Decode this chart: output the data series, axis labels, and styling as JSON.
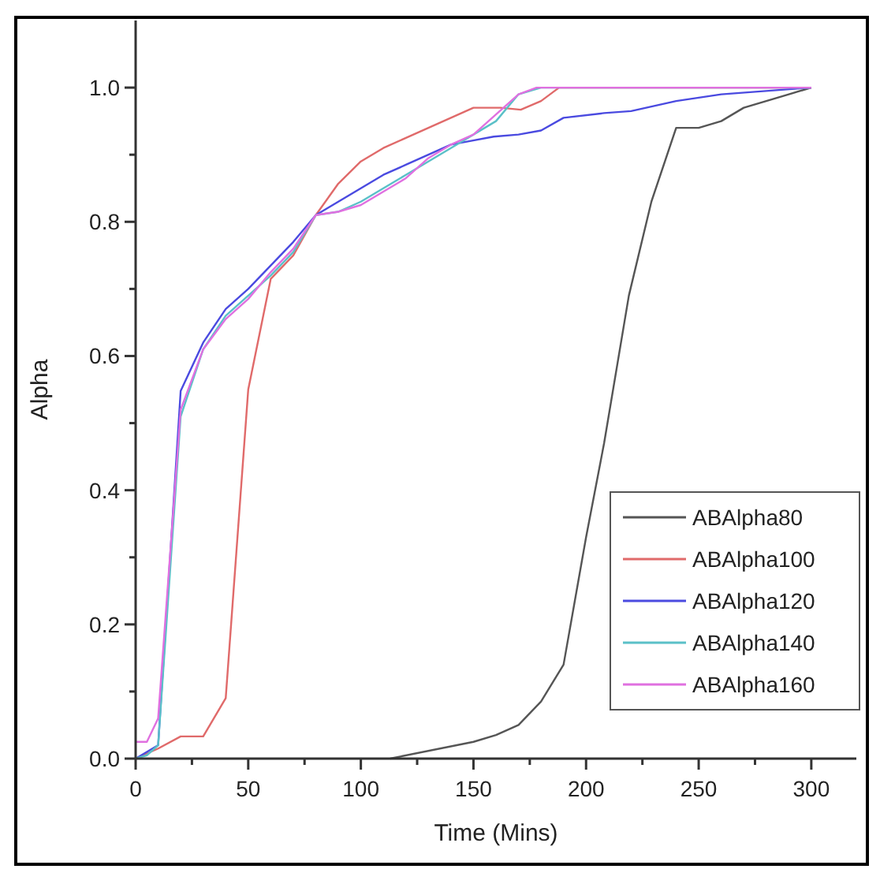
{
  "chart_data": {
    "type": "line",
    "xlabel": "Time (Mins)",
    "ylabel": "Alpha",
    "xlim": [
      0,
      320
    ],
    "ylim": [
      0,
      1.1
    ],
    "xticks": [
      0,
      {
        "value": 25,
        "label": null
      },
      50,
      {
        "value": 75,
        "label": null
      },
      100,
      {
        "value": 125,
        "label": null
      },
      150,
      {
        "value": 175,
        "label": null
      },
      200,
      {
        "value": 225,
        "label": null
      },
      250,
      {
        "value": 275,
        "label": null
      },
      300
    ],
    "yticks": [
      {
        "value": 0,
        "label": "0.0"
      },
      {
        "value": 0.1,
        "label": null
      },
      0.2,
      {
        "value": 0.3,
        "label": null
      },
      0.4,
      {
        "value": 0.5,
        "label": null
      },
      0.6,
      {
        "value": 0.7,
        "label": null
      },
      0.8,
      {
        "value": 0.9,
        "label": null
      },
      {
        "value": 1,
        "label": "1.0"
      }
    ],
    "grid": false,
    "legend": "bottom right",
    "marker": "none",
    "line_style": "solid",
    "series": [
      {
        "name": "ABAlpha80",
        "color": "#555555",
        "x": [
          113,
          150,
          160,
          170,
          180,
          190,
          200,
          208,
          219,
          229,
          240,
          250,
          260,
          270,
          280,
          290,
          300
        ],
        "values": [
          0,
          0.025,
          0.035,
          0.05,
          0.085,
          0.14,
          0.33,
          0.47,
          0.69,
          0.83,
          0.94,
          0.94,
          0.95,
          0.97,
          0.98,
          0.99,
          1.0
        ]
      },
      {
        "name": "ABAlpha100",
        "color": "#e06a6a",
        "x": [
          0,
          10,
          20,
          30,
          40,
          50,
          60,
          70,
          80,
          90,
          100,
          110,
          120,
          130,
          140,
          150,
          162,
          171,
          180,
          188,
          300
        ],
        "values": [
          0,
          0.015,
          0.033,
          0.033,
          0.09,
          0.55,
          0.715,
          0.75,
          0.81,
          0.857,
          0.89,
          0.91,
          0.925,
          0.94,
          0.955,
          0.97,
          0.97,
          0.967,
          0.98,
          1.0,
          1.0
        ]
      },
      {
        "name": "ABAlpha120",
        "color": "#4a4ae0",
        "x": [
          0,
          10,
          20,
          30,
          40,
          50,
          60,
          70,
          80,
          90,
          100,
          110,
          120,
          130,
          140,
          148,
          159,
          170,
          180,
          190,
          208,
          220,
          240,
          250,
          260,
          300
        ],
        "values": [
          0,
          0.02,
          0.548,
          0.62,
          0.67,
          0.7,
          0.735,
          0.77,
          0.81,
          0.83,
          0.85,
          0.87,
          0.885,
          0.9,
          0.915,
          0.92,
          0.927,
          0.93,
          0.936,
          0.955,
          0.962,
          0.965,
          0.98,
          0.985,
          0.99,
          1.0
        ]
      },
      {
        "name": "ABAlpha140",
        "color": "#5ac0c8",
        "x": [
          0,
          5,
          10,
          20,
          30,
          40,
          50,
          60,
          70,
          80,
          90,
          100,
          110,
          120,
          130,
          140,
          150,
          160,
          170,
          180,
          300
        ],
        "values": [
          0,
          0.005,
          0.02,
          0.51,
          0.61,
          0.66,
          0.69,
          0.72,
          0.755,
          0.81,
          0.815,
          0.83,
          0.85,
          0.87,
          0.89,
          0.91,
          0.93,
          0.95,
          0.99,
          1.0,
          1.0
        ]
      },
      {
        "name": "ABAlpha160",
        "color": "#e070e0",
        "x": [
          0,
          5,
          10,
          20,
          30,
          40,
          50,
          60,
          70,
          80,
          90,
          100,
          110,
          120,
          130,
          140,
          150,
          160,
          170,
          178,
          300
        ],
        "values": [
          0.025,
          0.025,
          0.06,
          0.52,
          0.61,
          0.655,
          0.685,
          0.725,
          0.76,
          0.81,
          0.815,
          0.825,
          0.845,
          0.865,
          0.895,
          0.915,
          0.93,
          0.96,
          0.99,
          1.0,
          1.0
        ]
      }
    ]
  }
}
